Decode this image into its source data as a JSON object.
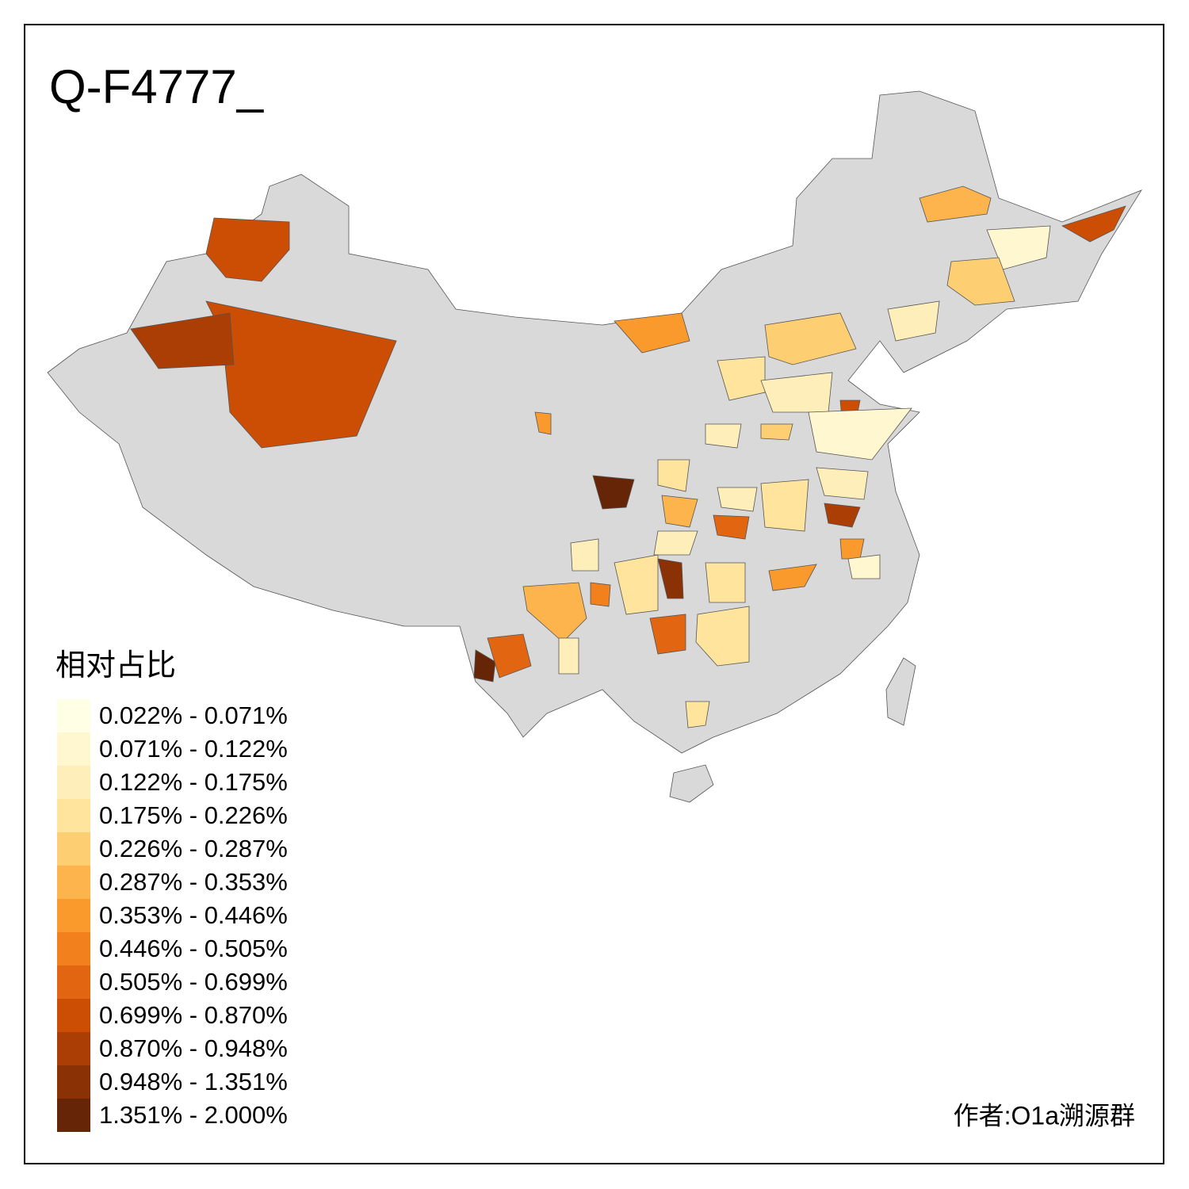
{
  "title": "Q-F4777_",
  "legend": {
    "title": "相对占比",
    "items": [
      {
        "label": "0.022% - 0.071%",
        "color": "#ffffe5"
      },
      {
        "label": "0.071% - 0.122%",
        "color": "#fff7d0"
      },
      {
        "label": "0.122% - 0.175%",
        "color": "#feefba"
      },
      {
        "label": "0.175% - 0.226%",
        "color": "#fee49c"
      },
      {
        "label": "0.226% - 0.287%",
        "color": "#fece72"
      },
      {
        "label": "0.287% - 0.353%",
        "color": "#fdb44c"
      },
      {
        "label": "0.353% - 0.446%",
        "color": "#fb9a2c"
      },
      {
        "label": "0.446% - 0.505%",
        "color": "#f1801d"
      },
      {
        "label": "0.505% - 0.699%",
        "color": "#e26612"
      },
      {
        "label": "0.699% - 0.870%",
        "color": "#cc4e04"
      },
      {
        "label": "0.870% - 0.948%",
        "color": "#ab3e04"
      },
      {
        "label": "0.948% - 1.351%",
        "color": "#8b3106"
      },
      {
        "label": "1.351% - 2.000%",
        "color": "#662506"
      }
    ]
  },
  "credit": "作者:O1a溯源群"
}
